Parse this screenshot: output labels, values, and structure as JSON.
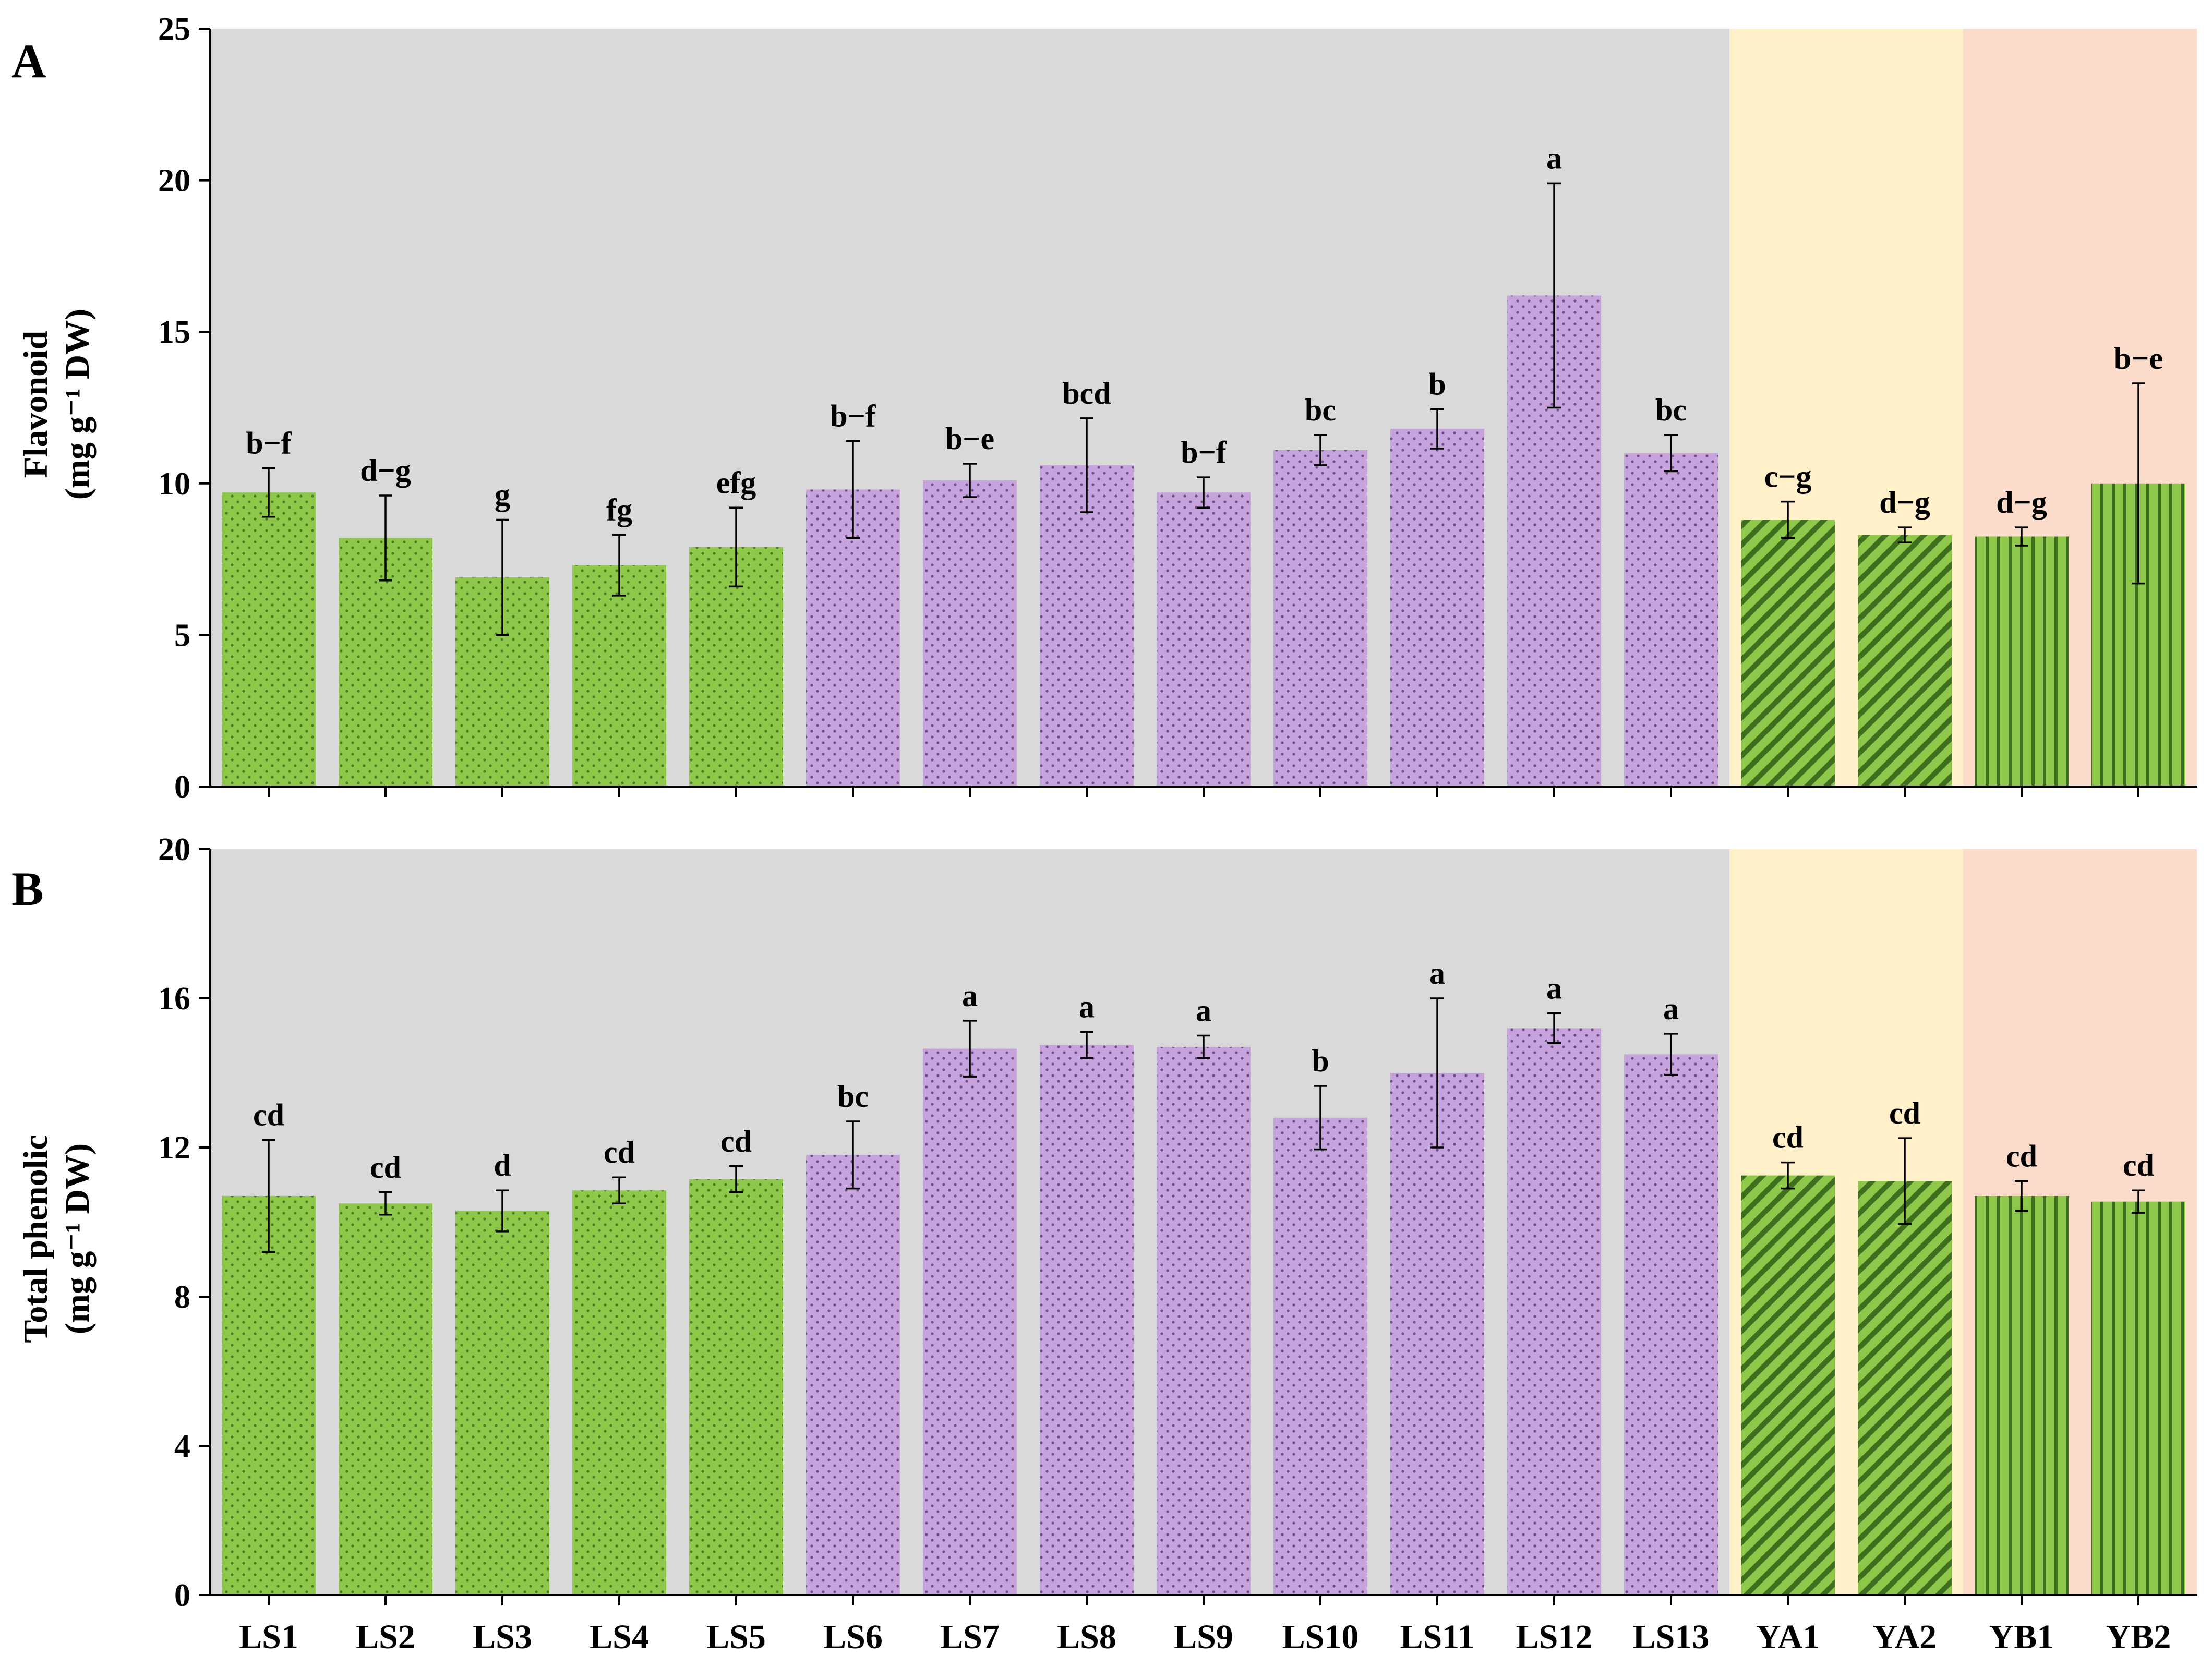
{
  "colors": {
    "green": "#8dc84b",
    "purple": "#c6a3dd",
    "bg_ls": "#d9d9d9",
    "bg_ya": "#fff0c9",
    "bg_yb": "#fbdccb",
    "stripe_dark": "#3f6f1e",
    "dot_dark": "#4a7d22",
    "dot_purple": "#6e4f84"
  },
  "chart_data": [
    {
      "type": "bar",
      "panel_label": "A",
      "ylabel_line1": "Flavonoid",
      "ylabel_line2": "(mg g⁻¹ DW)",
      "ylim": [
        0,
        25
      ],
      "yticks": [
        0,
        5,
        10,
        15,
        20,
        25
      ],
      "categories": [
        "LS1",
        "LS2",
        "LS3",
        "LS4",
        "LS5",
        "LS6",
        "LS7",
        "LS8",
        "LS9",
        "LS10",
        "LS11",
        "LS12",
        "LS13",
        "YA1",
        "YA2",
        "YB1",
        "YB2"
      ],
      "values": [
        9.7,
        8.2,
        6.9,
        7.3,
        7.9,
        9.8,
        10.1,
        10.6,
        9.7,
        11.1,
        11.8,
        16.2,
        11.0,
        8.8,
        8.3,
        8.25,
        10.0
      ],
      "errors": [
        0.8,
        1.4,
        1.9,
        1.0,
        1.3,
        1.6,
        0.55,
        1.55,
        0.5,
        0.5,
        0.65,
        3.7,
        0.6,
        0.6,
        0.25,
        0.3,
        3.3
      ],
      "significance": [
        "b−f",
        "d−g",
        "g",
        "fg",
        "efg",
        "b−f",
        "b−e",
        "bcd",
        "b−f",
        "bc",
        "b",
        "a",
        "bc",
        "c−g",
        "d−g",
        "d−g",
        "b−e"
      ]
    },
    {
      "type": "bar",
      "panel_label": "B",
      "ylabel_line1": "Total phenolic",
      "ylabel_line2": "(mg g⁻¹ DW)",
      "ylim": [
        0,
        20
      ],
      "yticks": [
        0,
        4,
        8,
        12,
        16,
        20
      ],
      "categories": [
        "LS1",
        "LS2",
        "LS3",
        "LS4",
        "LS5",
        "LS6",
        "LS7",
        "LS8",
        "LS9",
        "LS10",
        "LS11",
        "LS12",
        "LS13",
        "YA1",
        "YA2",
        "YB1",
        "YB2"
      ],
      "values": [
        10.7,
        10.5,
        10.3,
        10.85,
        11.15,
        11.8,
        14.65,
        14.75,
        14.7,
        12.8,
        14.0,
        15.2,
        14.5,
        11.25,
        11.1,
        10.7,
        10.55
      ],
      "errors": [
        1.5,
        0.3,
        0.55,
        0.35,
        0.35,
        0.9,
        0.75,
        0.35,
        0.3,
        0.85,
        2.0,
        0.4,
        0.55,
        0.35,
        1.15,
        0.4,
        0.3
      ],
      "significance": [
        "cd",
        "cd",
        "d",
        "cd",
        "cd",
        "bc",
        "a",
        "a",
        "a",
        "b",
        "a",
        "a",
        "a",
        "cd",
        "cd",
        "cd",
        "cd"
      ]
    }
  ],
  "bar_styles": [
    "green-dot",
    "green-dot",
    "green-dot",
    "green-dot",
    "green-dot",
    "purple-dot",
    "purple-dot",
    "purple-dot",
    "purple-dot",
    "purple-dot",
    "purple-dot",
    "purple-dot",
    "purple-dot",
    "green-diag",
    "green-diag",
    "green-vert",
    "green-vert"
  ],
  "region_groups": [
    {
      "name": "LS",
      "from": 0,
      "to": 12
    },
    {
      "name": "YA",
      "from": 13,
      "to": 14
    },
    {
      "name": "YB",
      "from": 15,
      "to": 16
    }
  ]
}
